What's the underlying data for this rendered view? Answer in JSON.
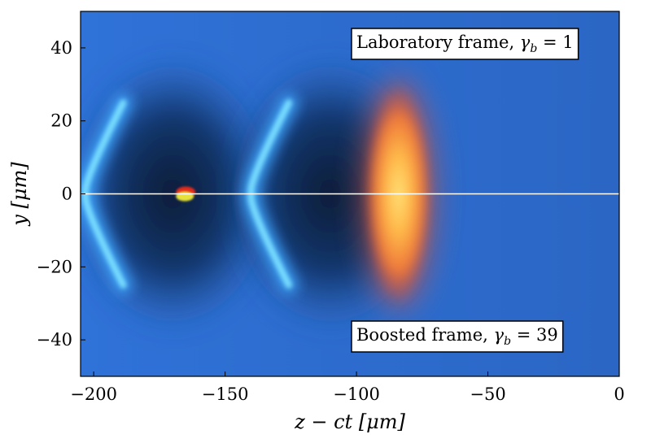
{
  "chart_data": {
    "type": "heatmap",
    "xlabel": "z − ct [μm]",
    "ylabel": "y [μm]",
    "xlim": [
      -205,
      0
    ],
    "ylim": [
      -50,
      50
    ],
    "x_ticks": [
      -200,
      -150,
      -100,
      -50,
      0
    ],
    "y_ticks": [
      -40,
      -20,
      0,
      20,
      40
    ],
    "x_tick_labels": [
      "−200",
      "−150",
      "−100",
      "−50",
      "0"
    ],
    "y_tick_labels": [
      "−40",
      "−20",
      "0",
      "20",
      "40"
    ],
    "grid": false,
    "colormap": "blue-dark-cyan with hot overlay",
    "background_color": "#2f6fd4",
    "divider_line": {
      "y": 0,
      "color": "#ffffff"
    },
    "features": {
      "wake_cavities": [
        {
          "center_z": -170,
          "half_width_z": 40,
          "half_height_y": 38
        },
        {
          "center_z": -110,
          "half_width_z": 40,
          "half_height_y": 38
        }
      ],
      "cyan_arcs": [
        {
          "vertex_z": -203,
          "y_span": [
            -25,
            25
          ]
        },
        {
          "vertex_z": -140,
          "y_span": [
            -25,
            25
          ]
        }
      ],
      "laser_pulse": {
        "center_z": -84,
        "half_width_z": 13,
        "half_height_y": 30
      },
      "electron_bunch": {
        "center_z": -165,
        "center_y": 0
      }
    },
    "annotations": {
      "top": {
        "prefix": "Laboratory frame, ",
        "symbol": "γ",
        "sub": "b",
        "suffix": " = 1"
      },
      "bottom": {
        "prefix": "Boosted frame, ",
        "symbol": "γ",
        "sub": "b",
        "suffix": " = 39"
      }
    }
  }
}
